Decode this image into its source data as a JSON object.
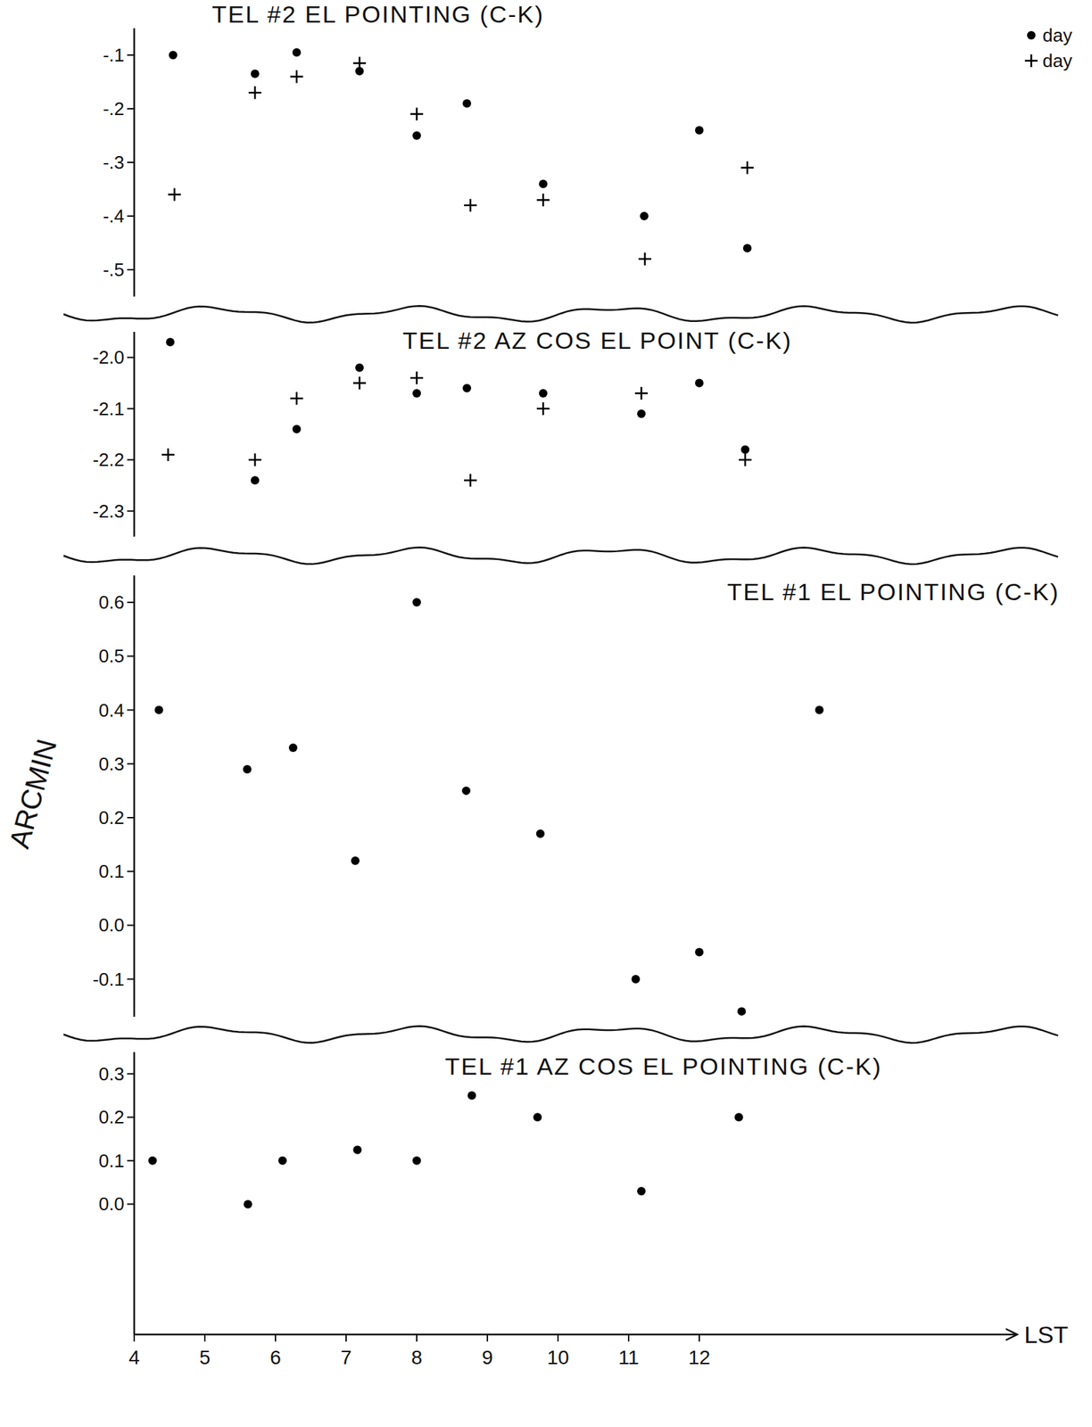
{
  "chart_data": [
    {
      "type": "scatter",
      "title": "TEL #2 EL POINTING (C-K)",
      "legend": "top right",
      "tick_labels": "y",
      "xlim": [
        4,
        16.5
      ],
      "ylim": [
        -0.55,
        -0.05
      ],
      "yticks": [
        {
          "value": -0.1,
          "label": "-.1"
        },
        {
          "value": -0.2,
          "label": "-.2"
        },
        {
          "value": -0.3,
          "label": "-.3"
        },
        {
          "value": -0.4,
          "label": "-.4"
        },
        {
          "value": -0.5,
          "label": "-.5"
        }
      ],
      "series": [
        {
          "name": "day",
          "marker": "dot",
          "color": "#000000",
          "x": [
            4.55,
            5.71,
            6.3,
            7.19,
            8.0,
            8.71,
            9.79,
            11.22,
            12.0,
            12.68
          ],
          "values": [
            -0.1,
            -0.135,
            -0.095,
            -0.13,
            -0.25,
            -0.19,
            -0.34,
            -0.4,
            -0.24,
            -0.46
          ]
        },
        {
          "name": "day",
          "marker": "plus",
          "color": "#000000",
          "x": [
            4.57,
            5.71,
            6.3,
            7.19,
            8.0,
            8.76,
            9.79,
            11.23,
            12.68
          ],
          "values": [
            -0.36,
            -0.17,
            -0.14,
            -0.115,
            -0.21,
            -0.38,
            -0.37,
            -0.48,
            -0.31
          ]
        }
      ]
    },
    {
      "type": "scatter",
      "title": "TEL #2 AZ COS EL POINT (C-K)",
      "tick_labels": "y",
      "xlim": [
        4,
        16.5
      ],
      "ylim": [
        -2.35,
        -1.95
      ],
      "yticks": [
        {
          "value": -2.0,
          "label": "-2.0"
        },
        -2.1,
        -2.2,
        -2.3
      ],
      "series": [
        {
          "name": "day",
          "marker": "dot",
          "color": "#000000",
          "x": [
            4.51,
            5.71,
            6.3,
            7.19,
            8.0,
            8.71,
            9.79,
            11.18,
            12.0,
            12.65
          ],
          "values": [
            -1.97,
            -2.24,
            -2.14,
            -2.02,
            -2.07,
            -2.06,
            -2.07,
            -2.11,
            -2.05,
            -2.18
          ]
        },
        {
          "name": "day",
          "marker": "plus",
          "color": "#000000",
          "x": [
            4.48,
            5.71,
            6.3,
            7.19,
            8.0,
            8.76,
            9.79,
            11.18,
            12.65
          ],
          "values": [
            -2.19,
            -2.2,
            -2.08,
            -2.05,
            -2.04,
            -2.24,
            -2.1,
            -2.07,
            -2.2
          ]
        }
      ]
    },
    {
      "type": "scatter",
      "title": "TEL #1 EL POINTING (C-K)",
      "ylabel": "ARCMIN",
      "tick_labels": "y",
      "marker": "dot",
      "color": "#000000",
      "xlim": [
        4,
        16.5
      ],
      "ylim": [
        -0.17,
        0.65
      ],
      "yticks": [
        0.6,
        0.5,
        0.4,
        0.3,
        0.2,
        0.1,
        {
          "value": 0,
          "label": "0.0"
        },
        -0.1
      ],
      "x": [
        4.35,
        5.6,
        6.25,
        7.13,
        8.0,
        8.7,
        9.75,
        11.1,
        12.0,
        12.6,
        13.7
      ],
      "values": [
        0.4,
        0.29,
        0.33,
        0.12,
        0.6,
        0.25,
        0.17,
        -0.1,
        -0.05,
        -0.16,
        0.4
      ]
    },
    {
      "type": "scatter",
      "title": "TEL #1 AZ COS EL POINTING (C-K)",
      "xlabel": "LST",
      "marker": "dot",
      "color": "#000000",
      "xlim": [
        4,
        16.5
      ],
      "ylim": [
        -0.3,
        0.35
      ],
      "xticks": [
        4,
        5,
        6,
        7,
        8,
        9,
        10,
        11,
        12
      ],
      "yticks": [
        0.3,
        0.2,
        0.1,
        {
          "value": 0,
          "label": "0.0"
        }
      ],
      "x": [
        4.26,
        5.61,
        6.1,
        7.16,
        8.0,
        8.78,
        9.71,
        11.18,
        12.56
      ],
      "values": [
        0.1,
        0.0,
        0.1,
        0.125,
        0.1,
        0.25,
        0.2,
        0.03,
        0.2
      ]
    }
  ]
}
